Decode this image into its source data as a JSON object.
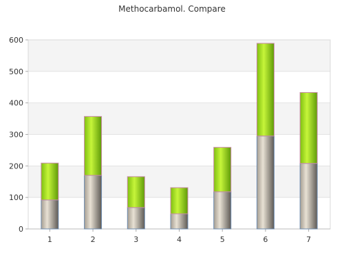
{
  "chart_data": {
    "type": "bar",
    "stacked": true,
    "title": "Methocarbamol. Compare",
    "categories": [
      "1",
      "2",
      "3",
      "4",
      "5",
      "6",
      "7"
    ],
    "series": [
      {
        "values": [
          92,
          170,
          68,
          48,
          118,
          295,
          208
        ],
        "color": "#8f8577"
      },
      {
        "values": [
          117,
          187,
          98,
          83,
          141,
          294,
          225
        ],
        "color": "#8fd11b"
      }
    ],
    "ylim": [
      0,
      600
    ],
    "yticks": [
      0,
      100,
      200,
      300,
      400,
      500,
      600
    ],
    "grid": true,
    "alternating_bands": true,
    "legend": "none"
  }
}
